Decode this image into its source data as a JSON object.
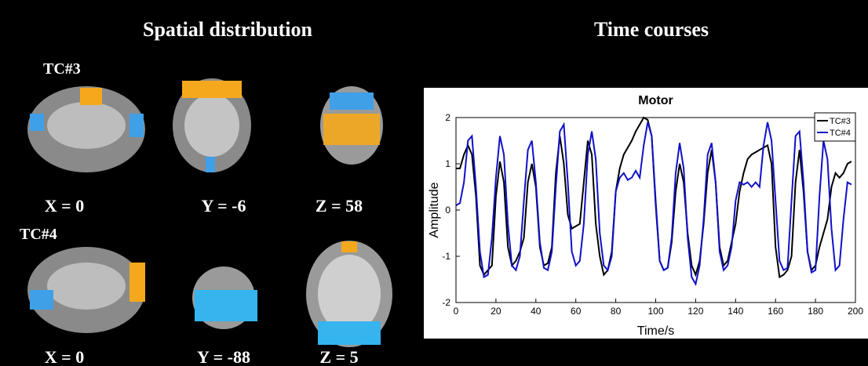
{
  "headings": {
    "spatial": "Spatial distribution",
    "time": "Time courses"
  },
  "brain_rows": [
    {
      "label": "TC#3",
      "slices": [
        "X = 0",
        "Y = -6",
        "Z = 58"
      ]
    },
    {
      "label": "TC#4",
      "slices": [
        "X = 0",
        "Y = -88",
        "Z = 5"
      ]
    }
  ],
  "chart_data": {
    "type": "line",
    "title": "Motor",
    "xlabel": "Time/s",
    "ylabel": "Amplitude",
    "x": [
      0,
      2,
      4,
      6,
      8,
      10,
      12,
      14,
      16,
      18,
      20,
      22,
      24,
      26,
      28,
      30,
      32,
      34,
      36,
      38,
      40,
      42,
      44,
      46,
      48,
      50,
      52,
      54,
      56,
      58,
      60,
      62,
      64,
      66,
      68,
      70,
      72,
      74,
      76,
      78,
      80,
      82,
      84,
      86,
      88,
      90,
      92,
      94,
      96,
      98,
      100,
      102,
      104,
      106,
      108,
      110,
      112,
      114,
      116,
      118,
      120,
      122,
      124,
      126,
      128,
      130,
      132,
      134,
      136,
      138,
      140,
      142,
      144,
      146,
      148,
      150,
      152,
      154,
      156,
      158,
      160,
      162,
      164,
      166,
      168,
      170,
      172,
      174,
      176,
      178,
      180,
      182,
      184,
      186,
      188,
      190,
      192,
      194,
      196,
      198
    ],
    "series": [
      {
        "name": "TC#3",
        "color": "#000000",
        "values": [
          0.9,
          0.9,
          1.2,
          1.4,
          1.2,
          0.3,
          -1.2,
          -1.4,
          -1.3,
          -1.2,
          0.3,
          1.05,
          0.6,
          -0.8,
          -1.2,
          -1.1,
          -0.9,
          -0.6,
          0.6,
          1.0,
          0.5,
          -0.8,
          -1.2,
          -1.15,
          -0.8,
          0.8,
          1.6,
          1.0,
          -0.1,
          -0.4,
          -0.35,
          -0.3,
          0.6,
          1.5,
          1.2,
          -0.3,
          -1.0,
          -1.4,
          -1.3,
          -0.9,
          0.4,
          0.9,
          1.2,
          1.35,
          1.5,
          1.7,
          1.85,
          2.0,
          1.95,
          1.6,
          0.1,
          -1.1,
          -1.3,
          -1.25,
          -0.7,
          0.4,
          1.0,
          0.6,
          -0.5,
          -1.2,
          -1.4,
          -1.1,
          -0.3,
          0.8,
          1.3,
          0.6,
          -0.8,
          -1.2,
          -1.1,
          -0.7,
          -0.3,
          0.4,
          0.8,
          1.1,
          1.2,
          1.25,
          1.3,
          1.35,
          1.4,
          1.0,
          -0.8,
          -1.45,
          -1.4,
          -1.3,
          -1.0,
          0.6,
          1.3,
          0.4,
          -0.9,
          -1.3,
          -1.2,
          -0.8,
          -0.5,
          -0.2,
          0.5,
          0.8,
          0.7,
          0.8,
          1.0,
          1.05
        ]
      },
      {
        "name": "TC#4",
        "color": "#1010c8",
        "values": [
          0.1,
          0.15,
          0.6,
          1.5,
          1.6,
          0.5,
          -0.9,
          -1.45,
          -1.4,
          -0.6,
          0.7,
          1.6,
          1.2,
          -0.3,
          -1.2,
          -1.3,
          -1.0,
          0.2,
          1.3,
          1.5,
          0.6,
          -0.7,
          -1.25,
          -1.3,
          -0.9,
          0.5,
          1.7,
          1.85,
          0.6,
          -0.9,
          -1.2,
          -1.1,
          -0.3,
          1.2,
          1.7,
          1.1,
          -0.5,
          -1.2,
          -1.3,
          -1.0,
          0.4,
          0.7,
          0.8,
          0.65,
          0.7,
          0.85,
          0.7,
          1.4,
          1.9,
          1.6,
          0.2,
          -1.1,
          -1.3,
          -1.25,
          -0.6,
          0.8,
          1.45,
          0.9,
          -0.6,
          -1.45,
          -1.6,
          -1.2,
          -0.2,
          1.2,
          1.45,
          0.6,
          -0.9,
          -1.3,
          -1.2,
          -0.8,
          0.2,
          0.6,
          0.55,
          0.6,
          0.5,
          0.6,
          0.5,
          1.4,
          1.9,
          1.5,
          0.2,
          -1.1,
          -1.3,
          -1.25,
          0.2,
          1.6,
          1.7,
          0.6,
          -0.9,
          -1.35,
          -1.3,
          0.3,
          1.5,
          1.1,
          -0.4,
          -1.3,
          -1.2,
          -0.2,
          0.6,
          0.55
        ]
      }
    ],
    "xlim": [
      0,
      200
    ],
    "xticks": [
      0,
      20,
      40,
      60,
      80,
      100,
      120,
      140,
      160,
      180,
      200
    ],
    "ylim": [
      -2,
      2
    ],
    "yticks": [
      -2,
      -1,
      0,
      1,
      2
    ],
    "legend": "upper-right"
  }
}
